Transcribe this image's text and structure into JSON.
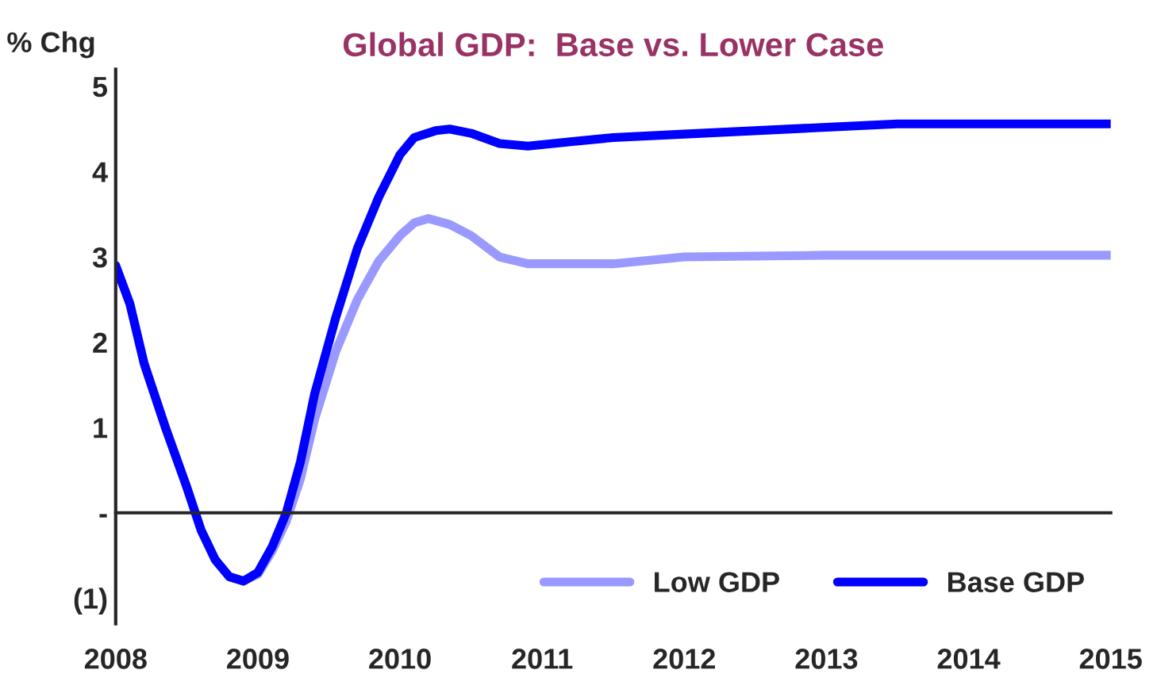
{
  "chart_data": {
    "type": "line",
    "title": "Global GDP:  Base vs. Lower Case",
    "ylabel": "% Chg",
    "xlim": [
      2008,
      2015
    ],
    "xticks": [
      2008,
      2009,
      2010,
      2011,
      2012,
      2013,
      2014,
      2015
    ],
    "ylim": [
      -1.3,
      5.2
    ],
    "yticks": [
      {
        "value": -1,
        "label": "(1)"
      },
      {
        "value": 0,
        "label": "-"
      },
      1,
      2,
      3,
      4,
      5
    ],
    "legend": "bottom right",
    "marker": "none",
    "line_style": "solid",
    "series": [
      {
        "name": "Low GDP",
        "color": "#9999ff",
        "x": [
          2008.0,
          2008.1,
          2008.2,
          2008.35,
          2008.5,
          2008.6,
          2008.7,
          2008.8,
          2008.9,
          2009.0,
          2009.1,
          2009.2,
          2009.3,
          2009.4,
          2009.55,
          2009.7,
          2009.85,
          2010.0,
          2010.1,
          2010.2,
          2010.35,
          2010.5,
          2010.7,
          2010.9,
          2011.5,
          2012.0,
          2013.0,
          2015.0
        ],
        "values": [
          2.9,
          2.45,
          1.75,
          1.0,
          0.3,
          -0.2,
          -0.55,
          -0.75,
          -0.8,
          -0.72,
          -0.45,
          -0.1,
          0.4,
          1.1,
          1.9,
          2.5,
          2.95,
          3.25,
          3.4,
          3.45,
          3.38,
          3.25,
          3.0,
          2.92,
          2.92,
          3.0,
          3.02,
          3.02
        ]
      },
      {
        "name": "Base GDP",
        "color": "#0000ff",
        "x": [
          2008.0,
          2008.1,
          2008.2,
          2008.35,
          2008.5,
          2008.6,
          2008.7,
          2008.8,
          2008.9,
          2009.0,
          2009.1,
          2009.2,
          2009.3,
          2009.4,
          2009.55,
          2009.7,
          2009.85,
          2010.0,
          2010.1,
          2010.25,
          2010.35,
          2010.5,
          2010.7,
          2010.9,
          2011.2,
          2011.5,
          2012.0,
          2013.0,
          2013.5,
          2014.0,
          2015.0
        ],
        "values": [
          2.9,
          2.45,
          1.75,
          1.0,
          0.3,
          -0.2,
          -0.55,
          -0.75,
          -0.8,
          -0.7,
          -0.4,
          0.0,
          0.6,
          1.4,
          2.3,
          3.1,
          3.7,
          4.2,
          4.4,
          4.48,
          4.5,
          4.45,
          4.33,
          4.3,
          4.35,
          4.4,
          4.44,
          4.52,
          4.56,
          4.56,
          4.56
        ]
      }
    ]
  }
}
